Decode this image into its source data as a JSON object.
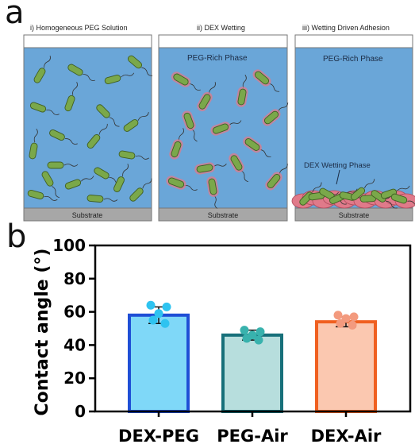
{
  "panel_a": {
    "letter": "a",
    "stages": [
      {
        "title": "i) Homogeneous PEG Solution",
        "phase_label": "",
        "wetting_label": "",
        "substrate": "Substrate"
      },
      {
        "title": "ii) DEX Wetting",
        "phase_label": "PEG-Rich Phase",
        "wetting_label": "",
        "substrate": "Substrate"
      },
      {
        "title": "iii) Wetting Driven Adhesion",
        "phase_label": "PEG-Rich Phase",
        "wetting_label": "DEX Wetting Phase",
        "substrate": "Substrate"
      }
    ],
    "colors": {
      "solution": "#6aa6d8",
      "bacteria": "#7aa84a",
      "dex_halo": "#e07a8a",
      "substrate": "#a7a7a7"
    }
  },
  "panel_b": {
    "letter": "b"
  },
  "chart_data": {
    "type": "bar",
    "categories": [
      "DEX-PEG",
      "PEG-Air",
      "DEX-Air"
    ],
    "values": [
      58,
      46,
      54
    ],
    "errors": [
      5,
      3,
      3
    ],
    "points": [
      [
        64,
        63,
        59,
        55,
        53
      ],
      [
        49,
        48,
        46,
        44,
        43
      ],
      [
        58,
        57,
        56,
        53,
        52
      ]
    ],
    "ylabel": "Contact angle (°)",
    "ylim": [
      0,
      100
    ],
    "yticks": [
      0,
      20,
      40,
      60,
      80,
      100
    ],
    "grid": false,
    "bar_fill": [
      "#7fd8f8",
      "#b7dedd",
      "#fbc8b0"
    ],
    "bar_edge": [
      "#1f4fd6",
      "#17707a",
      "#f06020"
    ],
    "point_color": [
      "#2ec3f0",
      "#38b2ad",
      "#f39a7e"
    ]
  }
}
